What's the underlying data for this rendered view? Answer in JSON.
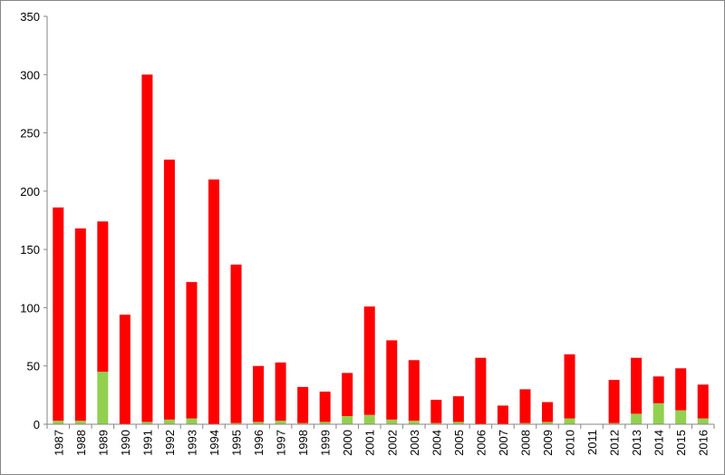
{
  "chart_data": {
    "type": "stacked-bar",
    "categories": [
      "1987",
      "1988",
      "1989",
      "1990",
      "1991",
      "1992",
      "1993",
      "1994",
      "1995",
      "1996",
      "1997",
      "1998",
      "1999",
      "2000",
      "2001",
      "2002",
      "2003",
      "2004",
      "2005",
      "2006",
      "2007",
      "2008",
      "2009",
      "2010",
      "2011",
      "2012",
      "2013",
      "2014",
      "2015",
      "2016"
    ],
    "series": [
      {
        "color": "#92d050",
        "values": [
          3,
          3,
          45,
          0,
          2,
          4,
          5,
          0,
          1,
          2,
          3,
          1,
          2,
          7,
          8,
          4,
          3,
          1,
          2,
          0,
          0,
          1,
          2,
          5,
          0,
          1,
          9,
          18,
          12,
          5
        ]
      },
      {
        "color": "#ff0000",
        "values": [
          183,
          165,
          129,
          94,
          298,
          223,
          117,
          210,
          136,
          48,
          50,
          31,
          26,
          37,
          93,
          68,
          52,
          20,
          22,
          57,
          16,
          29,
          17,
          55,
          0,
          37,
          48,
          23,
          36,
          29
        ]
      }
    ],
    "ylim": [
      0,
      350
    ],
    "yticks": [
      0,
      50,
      100,
      150,
      200,
      250,
      300,
      350
    ],
    "grid": false
  }
}
